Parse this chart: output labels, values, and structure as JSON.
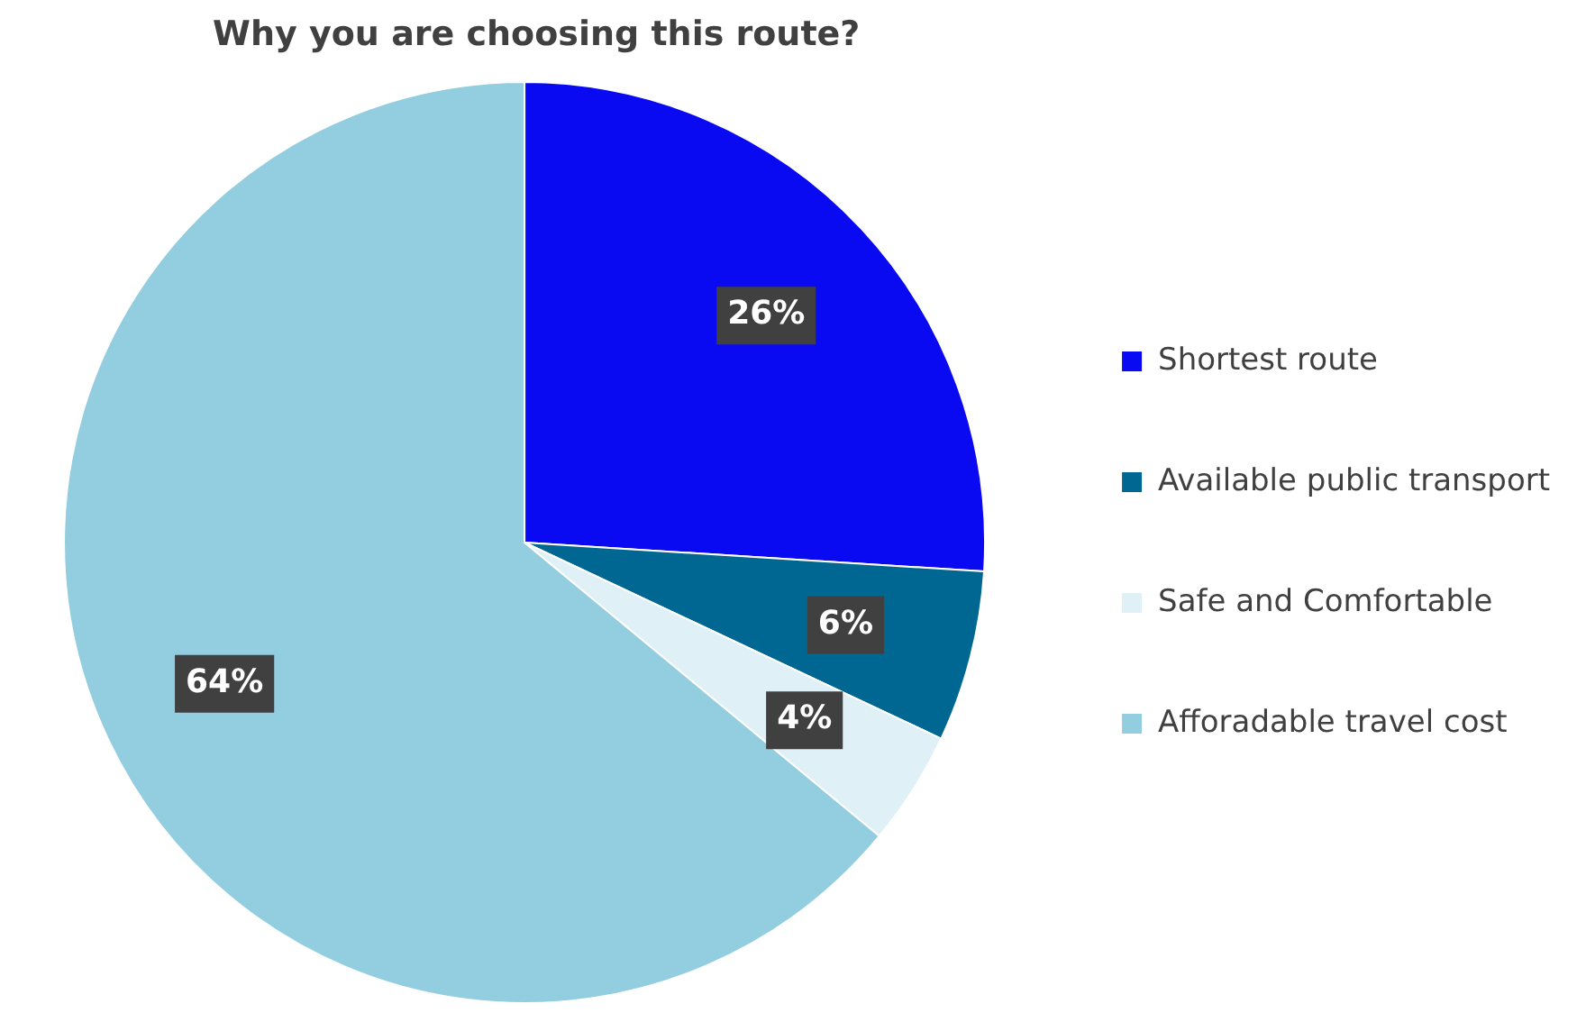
{
  "chart_data": {
    "type": "pie",
    "title": "Why you are choosing this route?",
    "categories": [
      "Shortest route",
      "Available public transport",
      "Safe and Comfortable",
      "Afforadable travel cost"
    ],
    "values": [
      26,
      6,
      4,
      64
    ],
    "colors": [
      "#0a0af2",
      "#006792",
      "#dff0f7",
      "#93cde0"
    ],
    "value_labels": [
      "26%",
      "6%",
      "4%",
      "64%"
    ],
    "legend": "right"
  }
}
